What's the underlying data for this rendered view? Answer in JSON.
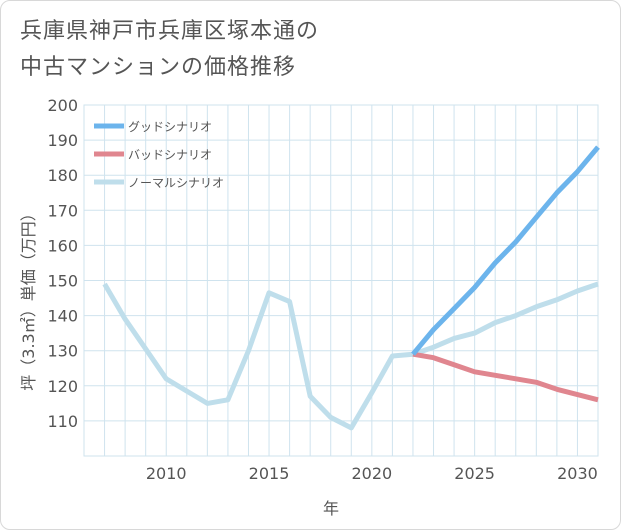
{
  "title_lines": [
    "兵庫県神戸市兵庫区塚本通の",
    "中古マンションの価格推移"
  ],
  "chart_data": {
    "type": "line",
    "title": "兵庫県神戸市兵庫区塚本通の中古マンションの価格推移",
    "xlabel": "年",
    "ylabel": "坪（3.3㎡）単価（万円）",
    "xlim": [
      2006,
      2031
    ],
    "ylim": [
      100,
      200
    ],
    "xticks": [
      2010,
      2015,
      2020,
      2025,
      2030
    ],
    "yticks": [
      110,
      120,
      130,
      140,
      150,
      160,
      170,
      180,
      190,
      200
    ],
    "grid": true,
    "legend_position": "top-left",
    "series": [
      {
        "name": "グッドシナリオ",
        "color": "#6cb4ec",
        "x": [
          2022,
          2023,
          2024,
          2025,
          2026,
          2027,
          2028,
          2029,
          2030,
          2031
        ],
        "y": [
          129,
          136,
          142,
          148,
          155,
          161,
          168,
          175,
          181,
          188
        ]
      },
      {
        "name": "バッドシナリオ",
        "color": "#e0868f",
        "x": [
          2022,
          2023,
          2024,
          2025,
          2026,
          2027,
          2028,
          2029,
          2030,
          2031
        ],
        "y": [
          129,
          128,
          126,
          124,
          123,
          122,
          121,
          119,
          117.5,
          116
        ]
      },
      {
        "name": "ノーマルシナリオ",
        "color": "#bfdeeb",
        "x": [
          2007,
          2008,
          2009,
          2010,
          2011,
          2012,
          2013,
          2014,
          2015,
          2016,
          2017,
          2018,
          2019,
          2020,
          2021,
          2022,
          2023,
          2024,
          2025,
          2026,
          2027,
          2028,
          2029,
          2030,
          2031
        ],
        "y": [
          149,
          139,
          130.5,
          122,
          118.5,
          115,
          116,
          130,
          146.5,
          144,
          117,
          111,
          108,
          118,
          128.5,
          129,
          131,
          133.5,
          135,
          138,
          140,
          142.5,
          144.5,
          147,
          149
        ]
      }
    ]
  }
}
